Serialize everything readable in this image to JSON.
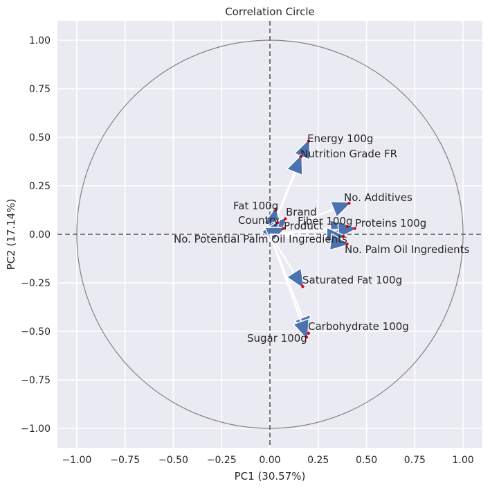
{
  "chart_data": {
    "type": "scatter",
    "title": "Correlation Circle",
    "xlabel": "PC1 (30.57%)",
    "ylabel": "PC2 (17.14%)",
    "xlim": [
      -1.1,
      1.1
    ],
    "ylim": [
      -1.1,
      1.1
    ],
    "xticks": [
      -1.0,
      -0.75,
      -0.5,
      -0.25,
      0.0,
      0.25,
      0.5,
      0.75,
      1.0
    ],
    "xtick_labels": [
      "−1.00",
      "−0.75",
      "−0.50",
      "−0.25",
      "0.00",
      "0.25",
      "0.50",
      "0.75",
      "1.00"
    ],
    "yticks": [
      1.0,
      0.75,
      0.5,
      0.25,
      0.0,
      -0.25,
      -0.5,
      -0.75,
      -1.0
    ],
    "ytick_labels": [
      "1.00",
      "0.75",
      "0.50",
      "0.25",
      "0.00",
      "−0.25",
      "−0.50",
      "−0.75",
      "−1.00"
    ],
    "grid": true,
    "unit_circle": true,
    "reference_lines": [
      0,
      0
    ],
    "colors": {
      "background": "#eaeaf2",
      "arrow": "#4c72b0",
      "marker": "#e8000b",
      "circle": "#808080",
      "dashed": "#555555"
    },
    "variables": [
      {
        "name": "Energy 100g",
        "x": 0.2,
        "y": 0.48
      },
      {
        "name": "Nutrition Grade FR",
        "x": 0.16,
        "y": 0.4
      },
      {
        "name": "No. Additives",
        "x": 0.41,
        "y": 0.16
      },
      {
        "name": "Fat 100g",
        "x": 0.03,
        "y": 0.13
      },
      {
        "name": "Brand",
        "x": 0.08,
        "y": 0.08
      },
      {
        "name": "Country",
        "x": 0.04,
        "y": 0.06
      },
      {
        "name": "Fiber 100g",
        "x": 0.4,
        "y": 0.04
      },
      {
        "name": "Proteins 100g",
        "x": 0.44,
        "y": 0.03
      },
      {
        "name": "Product",
        "x": 0.07,
        "y": 0.03
      },
      {
        "name": "No. Potential Palm Oil Ingredients",
        "x": 0.38,
        "y": -0.01
      },
      {
        "name": "No. Palm Oil Ingredients",
        "x": 0.4,
        "y": -0.05
      },
      {
        "name": "Saturated Fat 100g",
        "x": 0.17,
        "y": -0.27
      },
      {
        "name": "Carbohydrate 100g",
        "x": 0.2,
        "y": -0.51
      },
      {
        "name": "Sugar 100g",
        "x": 0.19,
        "y": -0.53
      }
    ]
  }
}
